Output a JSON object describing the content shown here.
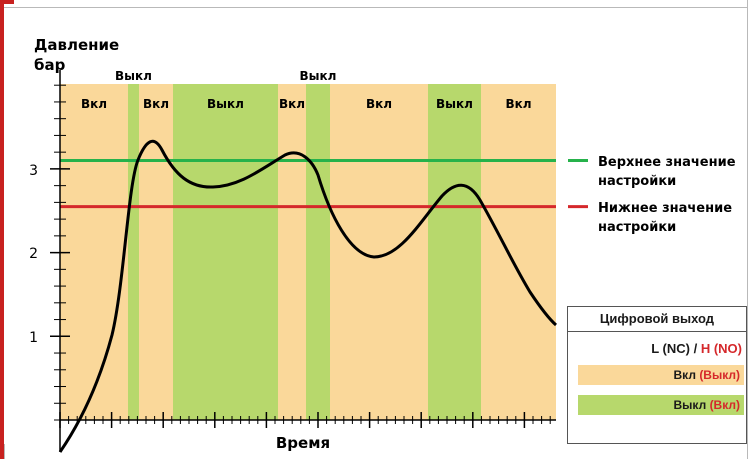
{
  "y_axis": {
    "title_line1": "Давление",
    "title_line2": "бар",
    "ticks": [
      "1",
      "2",
      "3"
    ]
  },
  "x_axis": {
    "title": "Время"
  },
  "bands": [
    {
      "label": "Вкл",
      "state": "on"
    },
    {
      "label": "Выкл",
      "state": "off",
      "label_above": true
    },
    {
      "label": "Вкл",
      "state": "on"
    },
    {
      "label": "Выкл",
      "state": "off"
    },
    {
      "label": "Вкл",
      "state": "on"
    },
    {
      "label": "Выкл",
      "state": "off",
      "label_above": true
    },
    {
      "label": "Вкл",
      "state": "on"
    },
    {
      "label": "Выкл",
      "state": "off"
    },
    {
      "label": "Вкл",
      "state": "on"
    }
  ],
  "thresholds": {
    "upper": {
      "value": 3.1,
      "label_line1": "Верхнее значение",
      "label_line2": "настройки",
      "color": "#26b24b"
    },
    "lower": {
      "value": 2.55,
      "label_line1": "Нижнее значение",
      "label_line2": "настройки",
      "color": "#d5282b"
    }
  },
  "legend": {
    "title": "Цифровой выход",
    "mode_prefix": "L (NC) / ",
    "mode_h": "H (NO)",
    "on_label": "Вкл",
    "on_alt": "(Выкл)",
    "off_label": "Выкл",
    "off_alt": "(Вкл)"
  },
  "colors": {
    "on": "#fad89a",
    "off": "#b7d86c",
    "accent": "#c8211f",
    "curve": "#000000"
  }
}
